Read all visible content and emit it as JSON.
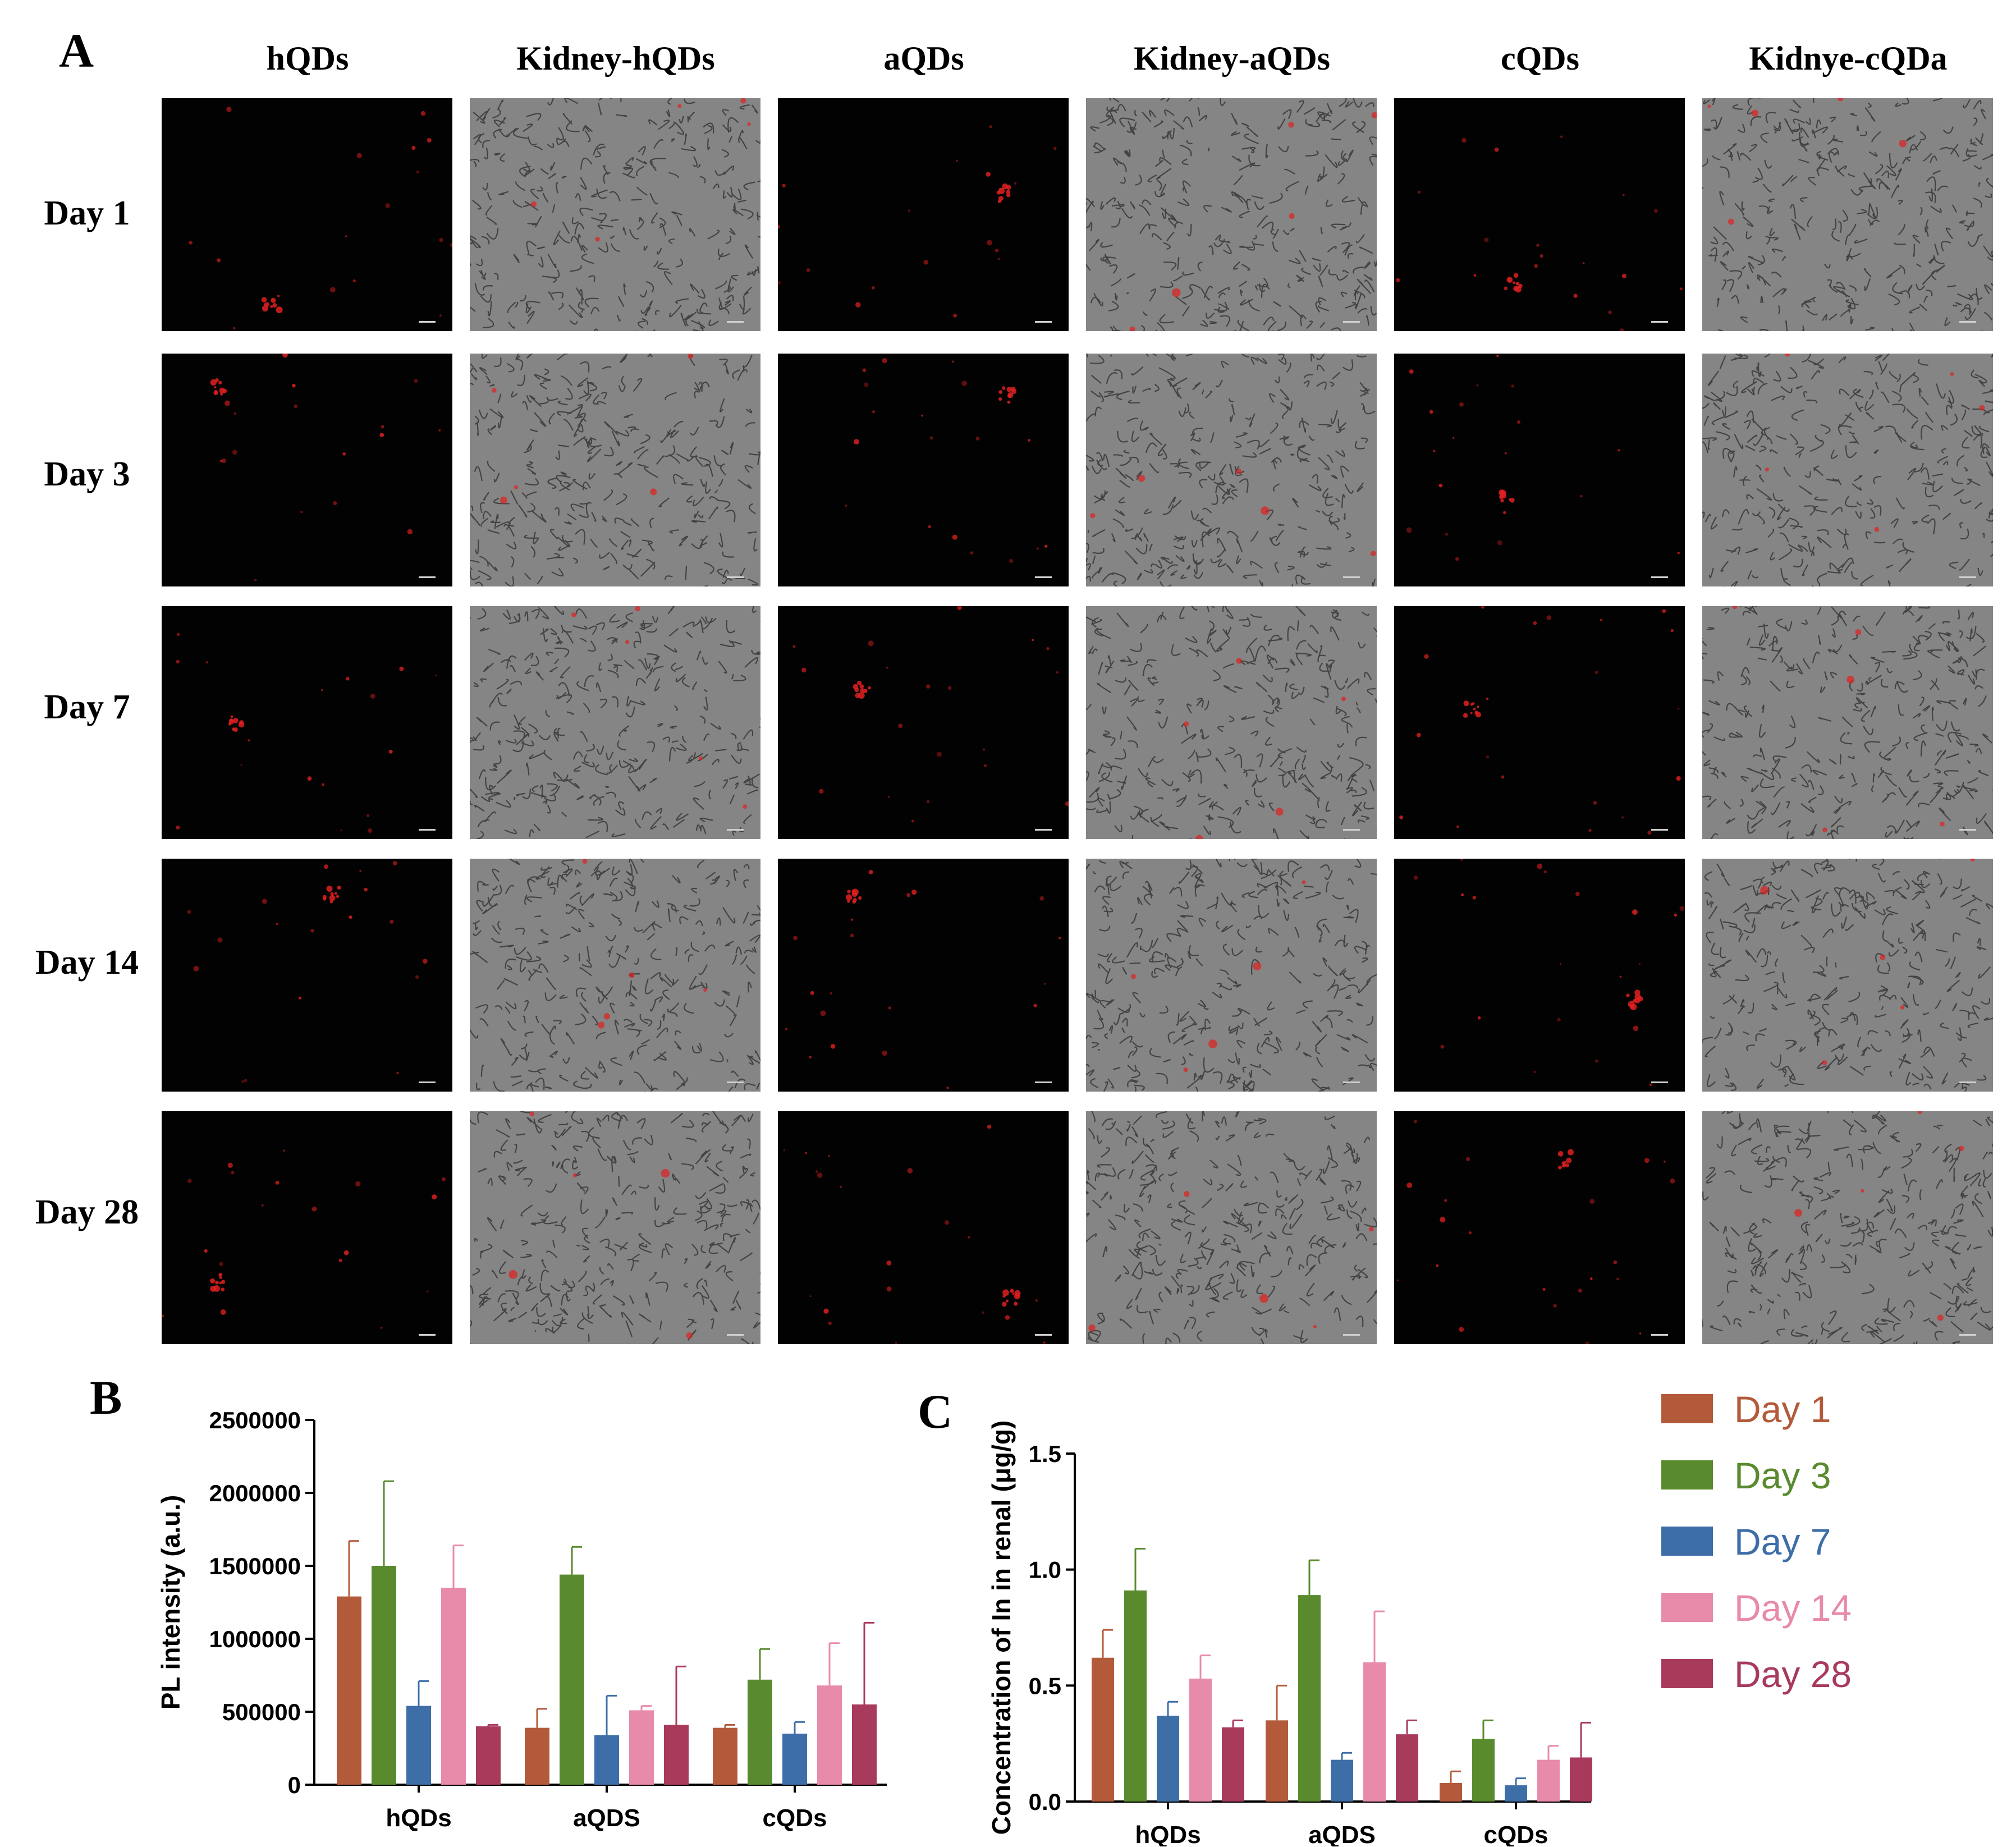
{
  "figure": {
    "panel_a_label": "A",
    "panel_b_label": "B",
    "panel_c_label": "C",
    "columns": [
      "hQDs",
      "Kidney-hQDs",
      "aQDs",
      "Kidney-aQDs",
      "cQDs",
      "Kidnye-cQDa"
    ],
    "rows": [
      "Day 1",
      "Day 3",
      "Day 7",
      "Day 14",
      "Day 28"
    ]
  },
  "colors": {
    "Day 1": "#b35a3a",
    "Day 3": "#5a8a2e",
    "Day 7": "#3d6ea8",
    "Day 14": "#e88aaa",
    "Day 28": "#a83a5c",
    "signal": "#e02020"
  },
  "chart_data": [
    {
      "type": "bar",
      "ylabel": "PL intensity (a.u.)",
      "categories": [
        "hQDs",
        "aQDS",
        "cQDs"
      ],
      "ylim": [
        0,
        2500000
      ],
      "yticks": [
        "0",
        "500000",
        "1000000",
        "1500000",
        "2000000",
        "2500000"
      ],
      "grid": false,
      "legend": "right",
      "series": [
        {
          "name": "Day 1",
          "values": [
            1290000,
            390000,
            390000
          ],
          "errors": [
            380000,
            130000,
            20000
          ]
        },
        {
          "name": "Day 3",
          "values": [
            1500000,
            1440000,
            720000
          ],
          "errors": [
            580000,
            190000,
            210000
          ]
        },
        {
          "name": "Day 7",
          "values": [
            540000,
            340000,
            350000
          ],
          "errors": [
            170000,
            270000,
            80000
          ]
        },
        {
          "name": "Day 14",
          "values": [
            1350000,
            510000,
            680000
          ],
          "errors": [
            290000,
            30000,
            290000
          ]
        },
        {
          "name": "Day 28",
          "values": [
            400000,
            410000,
            550000
          ],
          "errors": [
            10000,
            400000,
            560000
          ]
        }
      ]
    },
    {
      "type": "bar",
      "ylabel": "Concentration of In in renal (μg/g)",
      "categories": [
        "hQDs",
        "aQDS",
        "cQDs"
      ],
      "ylim": [
        0,
        1.5
      ],
      "yticks": [
        "0.0",
        "0.5",
        "1.0",
        "1.5"
      ],
      "grid": false,
      "legend": "right",
      "series": [
        {
          "name": "Day 1",
          "values": [
            0.62,
            0.35,
            0.08
          ],
          "errors": [
            0.12,
            0.15,
            0.05
          ]
        },
        {
          "name": "Day 3",
          "values": [
            0.91,
            0.89,
            0.27
          ],
          "errors": [
            0.18,
            0.15,
            0.08
          ]
        },
        {
          "name": "Day 7",
          "values": [
            0.37,
            0.18,
            0.07
          ],
          "errors": [
            0.06,
            0.03,
            0.03
          ]
        },
        {
          "name": "Day 14",
          "values": [
            0.53,
            0.6,
            0.18
          ],
          "errors": [
            0.1,
            0.22,
            0.06
          ]
        },
        {
          "name": "Day 28",
          "values": [
            0.32,
            0.29,
            0.19
          ],
          "errors": [
            0.03,
            0.06,
            0.15
          ]
        }
      ]
    }
  ]
}
